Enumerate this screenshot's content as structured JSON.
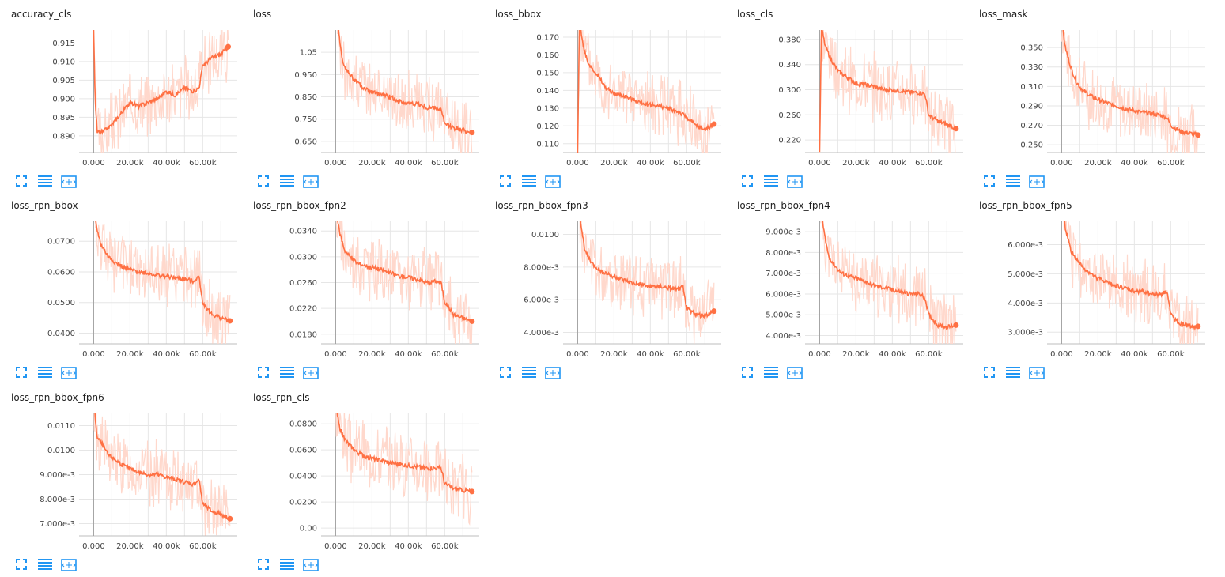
{
  "colors": {
    "line": "#ff7043",
    "band": "#ffd8cc",
    "grid": "#e6e6e6",
    "zero_axis": "#9e9e9e",
    "icon": "#2196f3"
  },
  "icons": [
    "fullscreen-icon",
    "list-icon",
    "fit-domain-icon"
  ],
  "chart_data": [
    {
      "type": "line",
      "title": "accuracy_cls",
      "x_ticks": [
        "0.000",
        "20.00k",
        "40.00k",
        "60.00k"
      ],
      "y_ticks": [
        "0.915",
        "0.910",
        "0.905",
        "0.900",
        "0.895",
        "0.890"
      ],
      "xlim": [
        -8000,
        79000
      ],
      "ylim": [
        0.8855,
        0.9185
      ],
      "tick_values": [
        0.915,
        0.91,
        0.905,
        0.9,
        0.895,
        0.89
      ],
      "series": [
        {
          "x": [
            0,
            800,
            2000,
            5000,
            10000,
            15000,
            20000,
            25000,
            30000,
            35000,
            40000,
            45000,
            50000,
            55000,
            58000,
            60000,
            65000,
            70000,
            74000
          ],
          "values": [
            0.918,
            0.9,
            0.891,
            0.891,
            0.893,
            0.896,
            0.899,
            0.898,
            0.899,
            0.9,
            0.902,
            0.901,
            0.903,
            0.902,
            0.903,
            0.909,
            0.911,
            0.912,
            0.914
          ]
        }
      ]
    },
    {
      "type": "line",
      "title": "loss",
      "x_ticks": [
        "0.000",
        "20.00k",
        "40.00k",
        "60.00k"
      ],
      "y_ticks": [
        "1.05",
        "0.950",
        "0.850",
        "0.750",
        "0.650"
      ],
      "xlim": [
        -8000,
        79000
      ],
      "ylim": [
        0.6,
        1.15
      ],
      "tick_values": [
        1.05,
        0.95,
        0.85,
        0.75,
        0.65
      ],
      "series": [
        {
          "x": [
            0,
            2000,
            4000,
            6000,
            10000,
            15000,
            20000,
            25000,
            30000,
            35000,
            40000,
            45000,
            50000,
            55000,
            58000,
            60000,
            65000,
            70000,
            75000
          ],
          "values": [
            1.3,
            1.12,
            1.0,
            0.97,
            0.93,
            0.89,
            0.87,
            0.86,
            0.85,
            0.83,
            0.82,
            0.82,
            0.8,
            0.8,
            0.79,
            0.73,
            0.71,
            0.7,
            0.69
          ]
        }
      ]
    },
    {
      "type": "line",
      "title": "loss_bbox",
      "x_ticks": [
        "0.000",
        "20.00k",
        "40.00k",
        "60.00k"
      ],
      "y_ticks": [
        "0.170",
        "0.160",
        "0.150",
        "0.140",
        "0.130",
        "0.120",
        "0.110"
      ],
      "xlim": [
        -8000,
        79000
      ],
      "ylim": [
        0.105,
        0.174
      ],
      "tick_values": [
        0.17,
        0.16,
        0.15,
        0.14,
        0.13,
        0.12,
        0.11
      ],
      "series": [
        {
          "x": [
            0,
            1000,
            3000,
            6000,
            10000,
            15000,
            20000,
            25000,
            30000,
            35000,
            40000,
            45000,
            50000,
            55000,
            60000,
            65000,
            70000,
            75000
          ],
          "values": [
            0.105,
            0.18,
            0.165,
            0.155,
            0.15,
            0.142,
            0.138,
            0.137,
            0.135,
            0.133,
            0.132,
            0.131,
            0.13,
            0.128,
            0.125,
            0.12,
            0.118,
            0.121
          ]
        }
      ]
    },
    {
      "type": "line",
      "title": "loss_cls",
      "x_ticks": [
        "0.000",
        "20.00k",
        "40.00k",
        "60.00k"
      ],
      "y_ticks": [
        "0.380",
        "0.340",
        "0.300",
        "0.260",
        "0.220"
      ],
      "xlim": [
        -8000,
        79000
      ],
      "ylim": [
        0.2,
        0.395
      ],
      "tick_values": [
        0.38,
        0.34,
        0.3,
        0.26,
        0.22
      ],
      "series": [
        {
          "x": [
            0,
            1000,
            3000,
            6000,
            10000,
            15000,
            20000,
            25000,
            30000,
            35000,
            40000,
            45000,
            50000,
            55000,
            58000,
            60000,
            65000,
            70000,
            75000
          ],
          "values": [
            0.2,
            0.4,
            0.37,
            0.35,
            0.33,
            0.32,
            0.31,
            0.308,
            0.305,
            0.3,
            0.3,
            0.298,
            0.296,
            0.295,
            0.293,
            0.26,
            0.25,
            0.245,
            0.238
          ]
        }
      ]
    },
    {
      "type": "line",
      "title": "loss_mask",
      "x_ticks": [
        "0.000",
        "20.00k",
        "40.00k",
        "60.00k"
      ],
      "y_ticks": [
        "0.350",
        "0.330",
        "0.310",
        "0.290",
        "0.270",
        "0.250"
      ],
      "xlim": [
        -8000,
        79000
      ],
      "ylim": [
        0.242,
        0.368
      ],
      "tick_values": [
        0.35,
        0.33,
        0.31,
        0.29,
        0.27,
        0.25
      ],
      "series": [
        {
          "x": [
            0,
            2000,
            5000,
            8000,
            12000,
            18000,
            25000,
            30000,
            35000,
            40000,
            45000,
            50000,
            55000,
            58000,
            60000,
            65000,
            70000,
            75000
          ],
          "values": [
            0.38,
            0.35,
            0.33,
            0.315,
            0.305,
            0.298,
            0.293,
            0.29,
            0.287,
            0.285,
            0.283,
            0.282,
            0.28,
            0.278,
            0.27,
            0.264,
            0.262,
            0.26
          ]
        }
      ]
    },
    {
      "type": "line",
      "title": "loss_rpn_bbox",
      "x_ticks": [
        "0.000",
        "20.00k",
        "40.00k",
        "60.00k"
      ],
      "y_ticks": [
        "0.0700",
        "0.0600",
        "0.0500",
        "0.0400"
      ],
      "xlim": [
        -8000,
        79000
      ],
      "ylim": [
        0.0365,
        0.0765
      ],
      "tick_values": [
        0.07,
        0.06,
        0.05,
        0.04
      ],
      "series": [
        {
          "x": [
            0,
            2000,
            4000,
            8000,
            12000,
            18000,
            25000,
            30000,
            35000,
            40000,
            45000,
            50000,
            55000,
            58000,
            60000,
            65000,
            70000,
            75000
          ],
          "values": [
            0.08,
            0.0735,
            0.069,
            0.065,
            0.063,
            0.061,
            0.06,
            0.0595,
            0.059,
            0.0585,
            0.058,
            0.0575,
            0.057,
            0.0585,
            0.05,
            0.046,
            0.045,
            0.044
          ]
        }
      ]
    },
    {
      "type": "line",
      "title": "loss_rpn_bbox_fpn2",
      "x_ticks": [
        "0.000",
        "20.00k",
        "40.00k",
        "60.00k"
      ],
      "y_ticks": [
        "0.0340",
        "0.0300",
        "0.0260",
        "0.0220",
        "0.0180"
      ],
      "xlim": [
        -8000,
        79000
      ],
      "ylim": [
        0.0165,
        0.0355
      ],
      "tick_values": [
        0.034,
        0.03,
        0.026,
        0.022,
        0.018
      ],
      "series": [
        {
          "x": [
            0,
            2000,
            5000,
            8000,
            12000,
            18000,
            25000,
            30000,
            35000,
            40000,
            45000,
            50000,
            55000,
            58000,
            60000,
            65000,
            70000,
            75000
          ],
          "values": [
            0.038,
            0.034,
            0.031,
            0.03,
            0.029,
            0.0285,
            0.028,
            0.0275,
            0.027,
            0.0268,
            0.0265,
            0.026,
            0.0262,
            0.026,
            0.023,
            0.021,
            0.0205,
            0.02
          ]
        }
      ]
    },
    {
      "type": "line",
      "title": "loss_rpn_bbox_fpn3",
      "x_ticks": [
        "0.000",
        "20.00k",
        "40.00k",
        "60.00k"
      ],
      "y_ticks": [
        "0.0100",
        "8.000e-3",
        "6.000e-3",
        "4.000e-3"
      ],
      "xlim": [
        -8000,
        79000
      ],
      "ylim": [
        0.0033,
        0.0108
      ],
      "tick_values": [
        0.01,
        0.008,
        0.006,
        0.004
      ],
      "series": [
        {
          "x": [
            0,
            2000,
            4000,
            8000,
            12000,
            18000,
            25000,
            30000,
            35000,
            40000,
            45000,
            50000,
            55000,
            58000,
            60000,
            65000,
            70000,
            75000
          ],
          "values": [
            0.012,
            0.0105,
            0.009,
            0.0082,
            0.0078,
            0.0075,
            0.0072,
            0.007,
            0.0069,
            0.0068,
            0.0068,
            0.0067,
            0.0066,
            0.0068,
            0.0055,
            0.0051,
            0.005,
            0.0053
          ]
        }
      ]
    },
    {
      "type": "line",
      "title": "loss_rpn_bbox_fpn4",
      "x_ticks": [
        "0.000",
        "20.00k",
        "40.00k",
        "60.00k"
      ],
      "y_ticks": [
        "9.000e-3",
        "8.000e-3",
        "7.000e-3",
        "6.000e-3",
        "5.000e-3",
        "4.000e-3"
      ],
      "xlim": [
        -8000,
        79000
      ],
      "ylim": [
        0.0036,
        0.0095
      ],
      "tick_values": [
        0.009,
        0.008,
        0.007,
        0.006,
        0.005,
        0.004
      ],
      "series": [
        {
          "x": [
            0,
            2000,
            5000,
            8000,
            12000,
            18000,
            25000,
            30000,
            35000,
            40000,
            45000,
            50000,
            55000,
            58000,
            60000,
            65000,
            70000,
            75000
          ],
          "values": [
            0.011,
            0.0092,
            0.0078,
            0.0074,
            0.007,
            0.0068,
            0.0066,
            0.0064,
            0.0063,
            0.0062,
            0.0061,
            0.006,
            0.006,
            0.0058,
            0.005,
            0.0045,
            0.0044,
            0.0045
          ]
        }
      ]
    },
    {
      "type": "line",
      "title": "loss_rpn_bbox_fpn5",
      "x_ticks": [
        "0.000",
        "20.00k",
        "40.00k",
        "60.00k"
      ],
      "y_ticks": [
        "6.000e-3",
        "5.000e-3",
        "4.000e-3",
        "3.000e-3"
      ],
      "xlim": [
        -8000,
        79000
      ],
      "ylim": [
        0.0026,
        0.0068
      ],
      "tick_values": [
        0.006,
        0.005,
        0.004,
        0.003
      ],
      "series": [
        {
          "x": [
            0,
            2000,
            5000,
            8000,
            12000,
            18000,
            25000,
            30000,
            35000,
            40000,
            45000,
            50000,
            55000,
            58000,
            60000,
            65000,
            70000,
            75000
          ],
          "values": [
            0.008,
            0.0066,
            0.0058,
            0.0055,
            0.0052,
            0.0049,
            0.0047,
            0.0046,
            0.0045,
            0.0044,
            0.0044,
            0.0043,
            0.0043,
            0.0044,
            0.0036,
            0.0033,
            0.0032,
            0.0032
          ]
        }
      ]
    },
    {
      "type": "line",
      "title": "loss_rpn_bbox_fpn6",
      "x_ticks": [
        "0.000",
        "20.00k",
        "40.00k",
        "60.00k"
      ],
      "y_ticks": [
        "0.0110",
        "0.0100",
        "9.000e-3",
        "8.000e-3",
        "7.000e-3"
      ],
      "xlim": [
        -8000,
        79000
      ],
      "ylim": [
        0.0065,
        0.0115
      ],
      "tick_values": [
        0.011,
        0.01,
        0.009,
        0.008,
        0.007
      ],
      "series": [
        {
          "x": [
            0,
            2000,
            5000,
            8000,
            12000,
            18000,
            25000,
            30000,
            35000,
            40000,
            45000,
            50000,
            55000,
            58000,
            60000,
            65000,
            70000,
            75000
          ],
          "values": [
            0.012,
            0.0105,
            0.0102,
            0.0098,
            0.0096,
            0.0093,
            0.0091,
            0.009,
            0.009,
            0.0089,
            0.0088,
            0.0087,
            0.0086,
            0.0088,
            0.0078,
            0.0075,
            0.0074,
            0.0072
          ]
        }
      ]
    },
    {
      "type": "line",
      "title": "loss_rpn_cls",
      "x_ticks": [
        "0.000",
        "20.00k",
        "40.00k",
        "60.00k"
      ],
      "y_ticks": [
        "0.0800",
        "0.0600",
        "0.0400",
        "0.0200",
        "0.00"
      ],
      "xlim": [
        -8000,
        79000
      ],
      "ylim": [
        -0.006,
        0.088
      ],
      "tick_values": [
        0.08,
        0.06,
        0.04,
        0.02,
        0
      ],
      "series": [
        {
          "x": [
            0,
            2000,
            5000,
            8000,
            12000,
            18000,
            25000,
            30000,
            35000,
            40000,
            45000,
            50000,
            55000,
            58000,
            60000,
            65000,
            70000,
            75000
          ],
          "values": [
            0.095,
            0.078,
            0.068,
            0.063,
            0.058,
            0.054,
            0.052,
            0.05,
            0.049,
            0.048,
            0.047,
            0.046,
            0.046,
            0.046,
            0.034,
            0.03,
            0.029,
            0.028
          ]
        }
      ]
    }
  ]
}
